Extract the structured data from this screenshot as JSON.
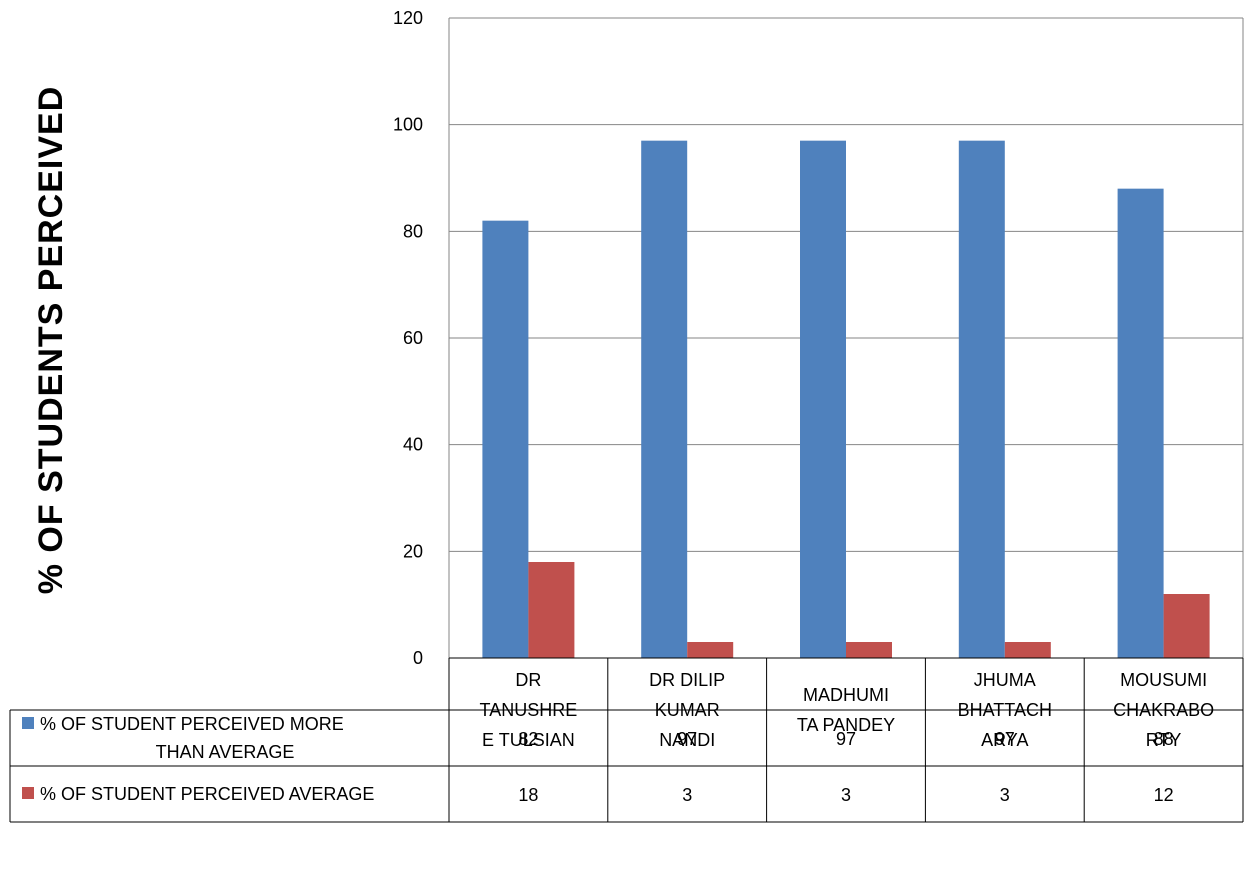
{
  "chart_data": {
    "type": "bar",
    "title": "",
    "ylabel": "% OF STUDENTS PERCEIVED",
    "xlabel": "",
    "ylim": [
      0,
      120
    ],
    "yticks": [
      0,
      20,
      40,
      60,
      80,
      100,
      120
    ],
    "grid": true,
    "legend": "data-table",
    "categories": [
      [
        "DR",
        "TANUSHRE",
        "E TULSIAN"
      ],
      [
        "DR DILIP",
        "KUMAR",
        "NANDI"
      ],
      [
        "MADHUMI",
        "TA PANDEY"
      ],
      [
        "JHUMA",
        "BHATTACH",
        "ARYA"
      ],
      [
        "MOUSUMI",
        "CHAKRABO",
        "RTY"
      ]
    ],
    "series": [
      {
        "name": [
          "% OF STUDENT PERCEIVED MORE",
          "THAN AVERAGE"
        ],
        "color": "#4F81BD",
        "values": [
          82,
          97,
          97,
          97,
          88
        ]
      },
      {
        "name": [
          "% OF STUDENT PERCEIVED AVERAGE"
        ],
        "color": "#C0504D",
        "values": [
          18,
          3,
          3,
          3,
          12
        ]
      }
    ]
  }
}
